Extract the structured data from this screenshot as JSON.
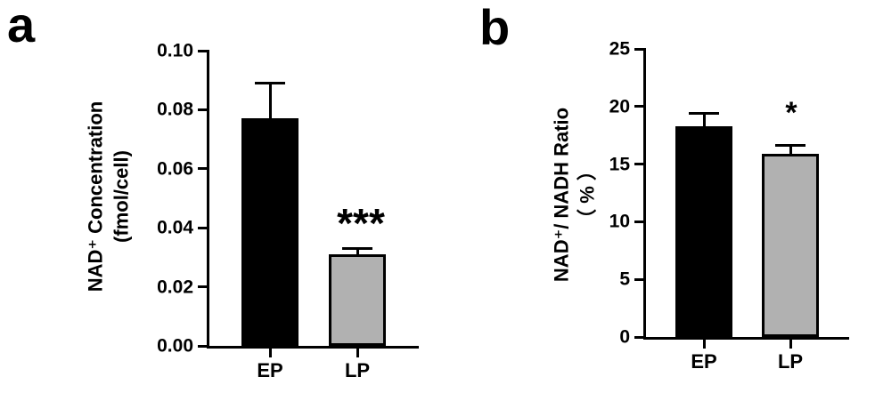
{
  "figure": {
    "background": "#ffffff",
    "axis_color": "#000000",
    "text_color": "#000000"
  },
  "panels": [
    {
      "letter": "a"
    },
    {
      "letter": "b"
    }
  ],
  "chart_data": [
    {
      "type": "bar",
      "panel": "a",
      "title": "",
      "categories": [
        "EP",
        "LP"
      ],
      "values": [
        0.077,
        0.031
      ],
      "errors_upper_sem": [
        0.012,
        0.002
      ],
      "bar_colors": [
        "#000000",
        "#b1b1b1"
      ],
      "bar_border_color": "#000000",
      "ylabel_lines": [
        "NAD⁺ Concentration",
        "(fmol/cell)"
      ],
      "xlabel": "",
      "yticks": [
        "0.00",
        "0.02",
        "0.04",
        "0.06",
        "0.08",
        "0.10"
      ],
      "ylim": [
        0,
        0.1
      ],
      "grid": false,
      "legend": null,
      "significance": [
        {
          "category": "LP",
          "label": "***"
        }
      ]
    },
    {
      "type": "bar",
      "panel": "b",
      "title": "",
      "categories": [
        "EP",
        "LP"
      ],
      "values": [
        18.3,
        15.9
      ],
      "errors_upper_sem": [
        1.1,
        0.7
      ],
      "bar_colors": [
        "#000000",
        "#b1b1b1"
      ],
      "bar_border_color": "#000000",
      "ylabel_lines": [
        "NAD⁺/ NADH Ratio",
        "（ % ）"
      ],
      "xlabel": "",
      "yticks": [
        "0",
        "5",
        "10",
        "15",
        "20",
        "25"
      ],
      "ylim": [
        0,
        25
      ],
      "grid": false,
      "legend": null,
      "significance": [
        {
          "category": "LP",
          "label": "*"
        }
      ]
    }
  ]
}
